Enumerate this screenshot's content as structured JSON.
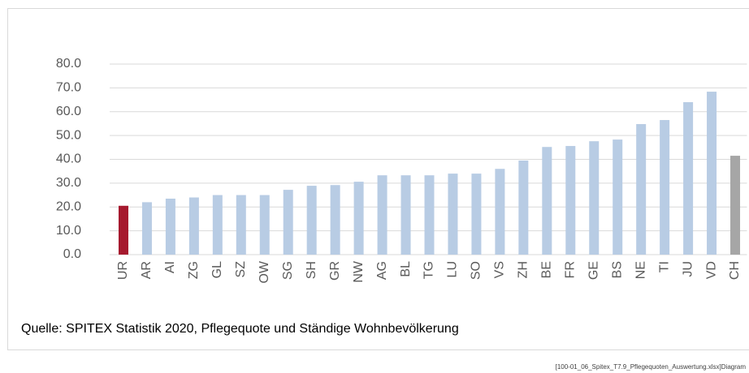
{
  "chart_data": {
    "type": "bar",
    "categories": [
      "UR",
      "AR",
      "AI",
      "ZG",
      "GL",
      "SZ",
      "OW",
      "SG",
      "SH",
      "GR",
      "NW",
      "AG",
      "BL",
      "TG",
      "LU",
      "SO",
      "VS",
      "ZH",
      "BE",
      "FR",
      "GE",
      "BS",
      "NE",
      "TI",
      "JU",
      "VD",
      "CH"
    ],
    "values": [
      20.5,
      22,
      23.5,
      24,
      25,
      25,
      25,
      27.2,
      28.9,
      29.2,
      30.6,
      33.3,
      33.3,
      33.3,
      34,
      34,
      36,
      39.5,
      45.2,
      45.6,
      47.6,
      48.3,
      54.8,
      56.5,
      64,
      68.4,
      41.5
    ],
    "colors": [
      "#a6192e",
      "#b8cce4",
      "#b8cce4",
      "#b8cce4",
      "#b8cce4",
      "#b8cce4",
      "#b8cce4",
      "#b8cce4",
      "#b8cce4",
      "#b8cce4",
      "#b8cce4",
      "#b8cce4",
      "#b8cce4",
      "#b8cce4",
      "#b8cce4",
      "#b8cce4",
      "#b8cce4",
      "#b8cce4",
      "#b8cce4",
      "#b8cce4",
      "#b8cce4",
      "#b8cce4",
      "#b8cce4",
      "#b8cce4",
      "#b8cce4",
      "#b8cce4",
      "#a6a6a6"
    ],
    "ylim": [
      0,
      80
    ],
    "yticks": [
      {
        "value": 0,
        "label": "0.0"
      },
      {
        "value": 10,
        "label": "10.0"
      },
      {
        "value": 20,
        "label": "20.0"
      },
      {
        "value": 30,
        "label": "30.0"
      },
      {
        "value": 40,
        "label": "40.0"
      },
      {
        "value": 50,
        "label": "50.0"
      },
      {
        "value": 60,
        "label": "60.0"
      },
      {
        "value": 70,
        "label": "70.0"
      },
      {
        "value": 80,
        "label": "80.0"
      }
    ],
    "grid": true,
    "source": "Quelle: SPITEX Statistik 2020, Pflegequote und Ständige Wohnbevölkerung",
    "footer": "[100-01_06_Spitex_T7.9_Pflegequoten_Auswertung.xlsx]Diagram"
  }
}
